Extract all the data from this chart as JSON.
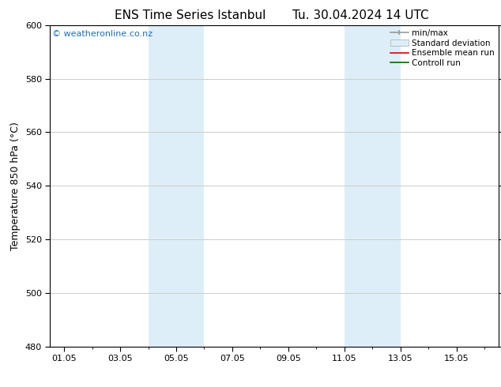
{
  "title": "ENS Time Series Istanbul",
  "subtitle": "Tu. 30.04.2024 14 UTC",
  "ylabel": "Temperature 850 hPa (°C)",
  "ylim": [
    480,
    600
  ],
  "yticks": [
    480,
    500,
    520,
    540,
    560,
    580,
    600
  ],
  "xtick_labels": [
    "01.05",
    "03.05",
    "05.05",
    "07.05",
    "09.05",
    "11.05",
    "13.05",
    "15.05"
  ],
  "xtick_positions": [
    0,
    2,
    4,
    6,
    8,
    10,
    12,
    14
  ],
  "xlim": [
    -0.5,
    15.5
  ],
  "shaded_regions": [
    {
      "start": 3.0,
      "end": 5.0,
      "color": "#ddeef8"
    },
    {
      "start": 10.0,
      "end": 12.0,
      "color": "#ddeef8"
    }
  ],
  "watermark_text": "© weatheronline.co.nz",
  "watermark_color": "#1a6fc4",
  "background_color": "#ffffff",
  "grid_color": "#cccccc",
  "spine_color": "#000000",
  "tick_fontsize": 8,
  "label_fontsize": 9,
  "title_fontsize": 11,
  "legend_fontsize": 7.5
}
